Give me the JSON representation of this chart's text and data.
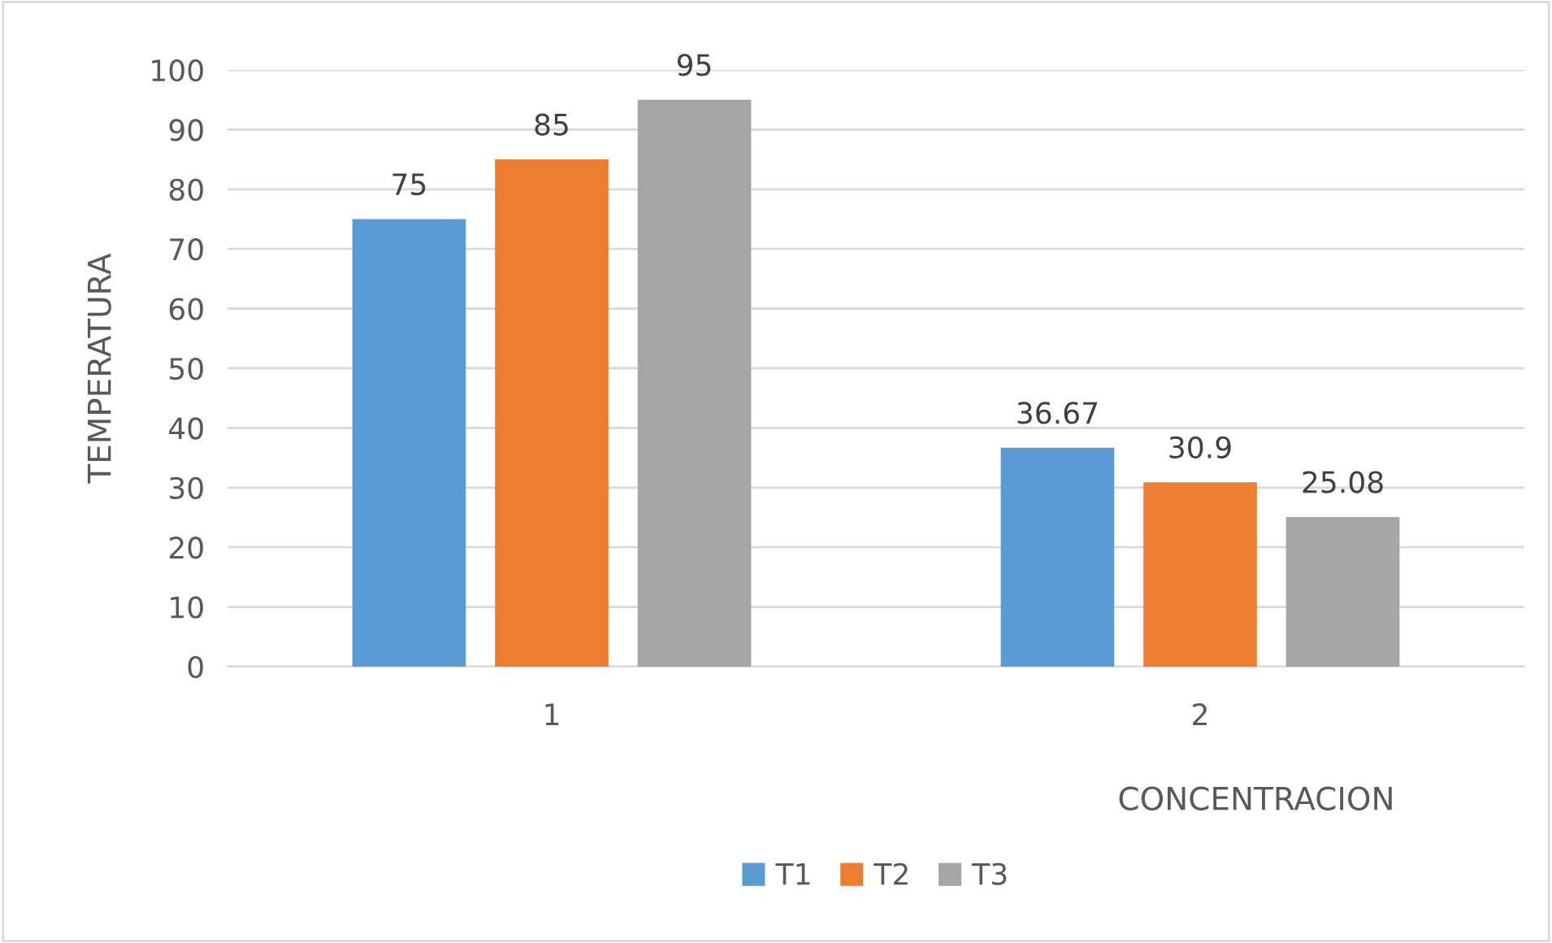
{
  "chart_data": {
    "type": "bar",
    "categories": [
      "1",
      "2"
    ],
    "xlabel": "CONCENTRACION",
    "ylabel": "TEMPERATURA",
    "series": [
      {
        "name": "T1",
        "color": "#5b9bd5",
        "values": [
          75,
          36.67
        ]
      },
      {
        "name": "T2",
        "color": "#ed7d31",
        "values": [
          85,
          30.9
        ]
      },
      {
        "name": "T3",
        "color": "#a5a5a5",
        "values": [
          95,
          25.08
        ]
      }
    ],
    "ylim": [
      0,
      100
    ],
    "yticks": [
      0,
      10,
      20,
      30,
      40,
      50,
      60,
      70,
      80,
      90,
      100
    ],
    "grid": "y",
    "legend": "bottom",
    "data_labels": true
  }
}
